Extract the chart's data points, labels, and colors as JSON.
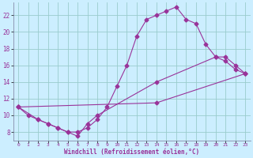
{
  "xlabel": "Windchill (Refroidissement éolien,°C)",
  "bg_color": "#cceeff",
  "grid_color": "#99cccc",
  "line_color": "#993399",
  "xlim": [
    -0.5,
    23.5
  ],
  "ylim": [
    7.0,
    23.5
  ],
  "yticks": [
    8,
    10,
    12,
    14,
    16,
    18,
    20,
    22
  ],
  "xticks": [
    0,
    1,
    2,
    3,
    4,
    5,
    6,
    7,
    8,
    9,
    10,
    11,
    12,
    13,
    14,
    15,
    16,
    17,
    18,
    19,
    20,
    21,
    22,
    23
  ],
  "line1_x": [
    0,
    1,
    2,
    3,
    4,
    5,
    6,
    7,
    8,
    9,
    10,
    11,
    12,
    13,
    14,
    15,
    16,
    17,
    18,
    19,
    20,
    21,
    22,
    23
  ],
  "line1_y": [
    11,
    10,
    9.5,
    9,
    8.5,
    8.0,
    8.0,
    8.5,
    9.5,
    11,
    13.5,
    16.0,
    19.5,
    21.5,
    22.0,
    22.5,
    23.0,
    21.5,
    21.0,
    18.5,
    17.0,
    16.5,
    15.5,
    15.0
  ],
  "line2_x": [
    0,
    2,
    3,
    4,
    5,
    6,
    7,
    8,
    14,
    20,
    21,
    22,
    23
  ],
  "line2_y": [
    11,
    9.5,
    9.0,
    8.5,
    8.0,
    7.5,
    9.0,
    10.0,
    14.0,
    17.0,
    17.0,
    16.0,
    15.0
  ],
  "line3_x": [
    0,
    14,
    23
  ],
  "line3_y": [
    11,
    11.5,
    15.0
  ]
}
